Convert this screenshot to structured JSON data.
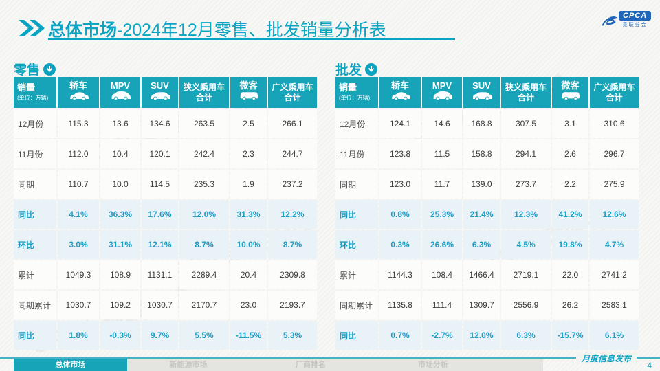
{
  "header": {
    "title_bold": "总体市场",
    "title_rest": "-2024年12月零售、批发销量分析表"
  },
  "logo": {
    "text": "CPCA",
    "subtext": "乘联分会"
  },
  "unit_note": "(单位：万辆)",
  "table_columns": [
    "销量",
    "轿车",
    "MPV",
    "SUV",
    "狭义乘用车合计",
    "微客",
    "广义乘用车合计"
  ],
  "tables": [
    {
      "id": "retail",
      "label": "零售",
      "rows": [
        {
          "label": "12月份",
          "type": "num",
          "values": [
            "115.3",
            "13.6",
            "134.6",
            "263.5",
            "2.5",
            "266.1"
          ]
        },
        {
          "label": "11月份",
          "type": "num",
          "values": [
            "112.0",
            "10.4",
            "120.1",
            "242.4",
            "2.3",
            "244.7"
          ]
        },
        {
          "label": "同期",
          "type": "num",
          "values": [
            "110.7",
            "10.0",
            "114.5",
            "235.3",
            "1.9",
            "237.2"
          ]
        },
        {
          "label": "同比",
          "type": "pct",
          "values": [
            "4.1%",
            "36.3%",
            "17.6%",
            "12.0%",
            "31.3%",
            "12.2%"
          ]
        },
        {
          "label": "环比",
          "type": "pct",
          "values": [
            "3.0%",
            "31.1%",
            "12.1%",
            "8.7%",
            "10.0%",
            "8.7%"
          ]
        },
        {
          "label": "累计",
          "type": "num",
          "values": [
            "1049.3",
            "108.9",
            "1131.1",
            "2289.4",
            "20.4",
            "2309.8"
          ]
        },
        {
          "label": "同期累计",
          "type": "num",
          "values": [
            "1030.7",
            "109.2",
            "1030.7",
            "2170.7",
            "23.0",
            "2193.7"
          ]
        },
        {
          "label": "同比",
          "type": "pct",
          "values": [
            "1.8%",
            "-0.3%",
            "9.7%",
            "5.5%",
            "-11.5%",
            "5.3%"
          ]
        }
      ]
    },
    {
      "id": "wholesale",
      "label": "批发",
      "rows": [
        {
          "label": "12月份",
          "type": "num",
          "values": [
            "124.1",
            "14.6",
            "168.8",
            "307.5",
            "3.1",
            "310.6"
          ]
        },
        {
          "label": "11月份",
          "type": "num",
          "values": [
            "123.8",
            "11.5",
            "158.8",
            "294.1",
            "2.6",
            "296.7"
          ]
        },
        {
          "label": "同期",
          "type": "num",
          "values": [
            "123.0",
            "11.7",
            "139.0",
            "273.7",
            "2.2",
            "275.9"
          ]
        },
        {
          "label": "同比",
          "type": "pct",
          "values": [
            "0.8%",
            "25.3%",
            "21.4%",
            "12.3%",
            "41.2%",
            "12.6%"
          ]
        },
        {
          "label": "环比",
          "type": "pct",
          "values": [
            "0.3%",
            "26.6%",
            "6.3%",
            "4.5%",
            "19.8%",
            "4.7%"
          ]
        },
        {
          "label": "累计",
          "type": "num",
          "values": [
            "1144.3",
            "108.4",
            "1466.4",
            "2719.1",
            "22.0",
            "2741.2"
          ]
        },
        {
          "label": "同期累计",
          "type": "num",
          "values": [
            "1135.8",
            "111.4",
            "1309.7",
            "2556.9",
            "26.2",
            "2583.1"
          ]
        },
        {
          "label": "同比",
          "type": "pct",
          "values": [
            "0.7%",
            "-2.7%",
            "12.0%",
            "6.3%",
            "-15.7%",
            "6.1%"
          ]
        }
      ]
    }
  ],
  "nav": {
    "tabs": [
      {
        "label": "总体市场",
        "active": true
      },
      {
        "label": "新能源市场",
        "active": false
      },
      {
        "label": "厂商排名",
        "active": false
      },
      {
        "label": "市场分析",
        "active": false
      }
    ]
  },
  "footer": {
    "note": "月度信息发布",
    "page_number": "4"
  },
  "watermark_text": "CPCA 乘联分会",
  "colors": {
    "accent_teal": "#17a4b8",
    "title_teal": "#0ba4c2",
    "pct_text": "#1b9ec4",
    "pct_row_bg": "#e9f2f7",
    "logo_blue": "#1f66b8"
  }
}
